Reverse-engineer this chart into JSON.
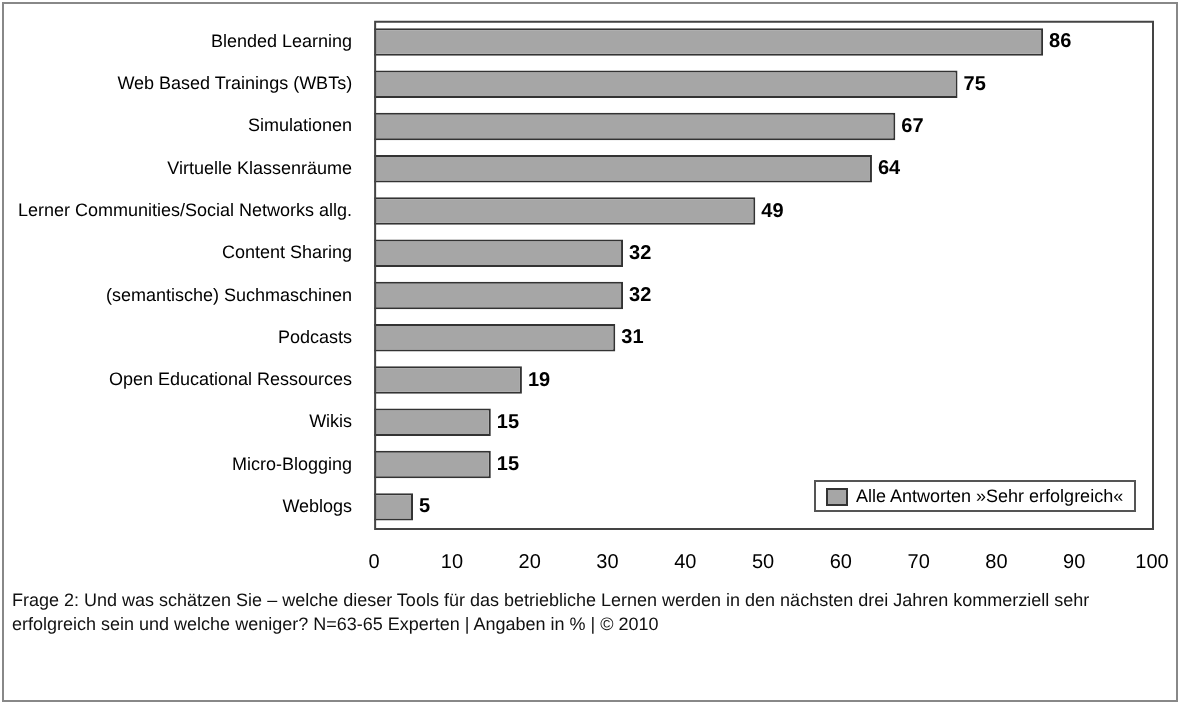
{
  "chart_data": {
    "type": "bar",
    "orientation": "horizontal",
    "categories": [
      "Blended Learning",
      "Web Based Trainings (WBTs)",
      "Simulationen",
      "Virtuelle Klassenräume",
      "Lerner Communities/Social Networks allg.",
      "Content Sharing",
      "(semantische) Suchmaschinen",
      "Podcasts",
      "Open Educational Ressources",
      "Wikis",
      "Micro-Blogging",
      "Weblogs"
    ],
    "series": [
      {
        "name": "Alle Antworten »Sehr erfolgreich«",
        "color": "#a6a6a6",
        "values": [
          86,
          75,
          67,
          64,
          49,
          32,
          32,
          31,
          19,
          15,
          15,
          5
        ]
      }
    ],
    "xlim": [
      0,
      100
    ],
    "xticks": [
      0,
      10,
      20,
      30,
      40,
      50,
      60,
      70,
      80,
      90,
      100
    ],
    "data_labels": true,
    "legend": "bottom right",
    "grid": false,
    "annotations": [
      "Frage 2: Und was schätzen Sie – welche dieser Tools für das betriebliche Lernen werden in den nächsten drei Jahren kommerziell sehr erfolgreich sein und welche weniger? N=63-65 Experten | Angaben in % | © 2010"
    ]
  }
}
